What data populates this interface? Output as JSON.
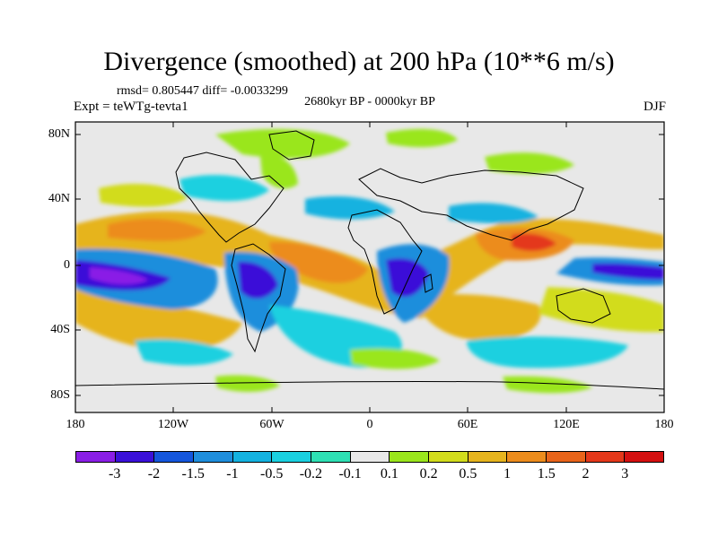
{
  "title": "Divergence (smoothed) at 200 hPa (10**6 m/s)",
  "stats": "rmsd= 0.805447 diff= -0.0033299",
  "period": "2680kyr BP - 0000kyr BP",
  "experiment": "Expt = teWTg-tevta1",
  "season": "DJF",
  "y_axis_labels": [
    "80N",
    "40N",
    "0",
    "40S",
    "80S"
  ],
  "x_axis_labels": [
    "180",
    "120W",
    "60W",
    "0",
    "60E",
    "120E",
    "180"
  ],
  "colorbar": {
    "labels": [
      "-3",
      "-2",
      "-1.5",
      "-1",
      "-0.5",
      "-0.2",
      "-0.1",
      "0.1",
      "0.2",
      "0.5",
      "1",
      "1.5",
      "2",
      "3"
    ],
    "colors": [
      "#8a1ee6",
      "#3a10d8",
      "#1456dc",
      "#1f8edc",
      "#14b2e0",
      "#1ad0e0",
      "#2ee0b4",
      "#e8e8e8",
      "#9ae61c",
      "#d2dc1c",
      "#e6b41e",
      "#ec8c1c",
      "#e8641a",
      "#e4381a",
      "#d41010"
    ]
  },
  "colors": {
    "land_outline": "#000000",
    "background": "#e8e8e8"
  }
}
